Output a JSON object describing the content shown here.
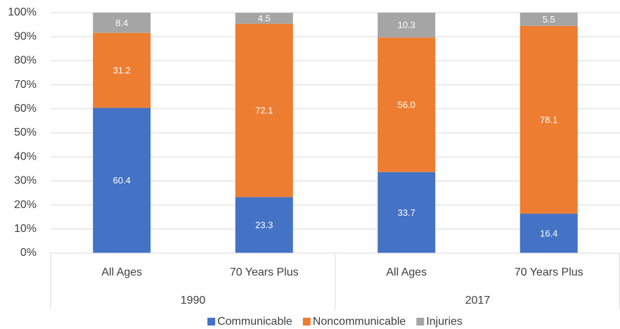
{
  "chart_data": {
    "type": "stacked_bar",
    "categories": [
      "All Ages",
      "70 Years Plus",
      "All Ages",
      "70 Years Plus"
    ],
    "groups": [
      "1990",
      "2017"
    ],
    "series": [
      {
        "name": "Communicable",
        "color": "#4472c4",
        "values": [
          60.4,
          23.3,
          33.7,
          16.4
        ]
      },
      {
        "name": "Noncommunicable",
        "color": "#ed7d31",
        "values": [
          31.2,
          72.1,
          56.0,
          78.1
        ],
        "value_labels": [
          "31.2",
          "72.1",
          "56.0",
          "78.1"
        ]
      },
      {
        "name": "Injuries",
        "color": "#a5a5a5",
        "values": [
          8.4,
          4.5,
          10.3,
          5.5
        ]
      }
    ],
    "ylim": [
      0,
      100
    ],
    "yticks": [
      {
        "value": 0,
        "label": "0%"
      },
      {
        "value": 10,
        "label": "10%"
      },
      {
        "value": 20,
        "label": "20%"
      },
      {
        "value": 30,
        "label": "30%"
      },
      {
        "value": 40,
        "label": "40%"
      },
      {
        "value": 50,
        "label": "50%"
      },
      {
        "value": 60,
        "label": "60%"
      },
      {
        "value": 70,
        "label": "70%"
      },
      {
        "value": 80,
        "label": "80%"
      },
      {
        "value": 90,
        "label": "90%"
      },
      {
        "value": 100,
        "label": "100%"
      }
    ],
    "grid": true,
    "legend": "bottom"
  }
}
